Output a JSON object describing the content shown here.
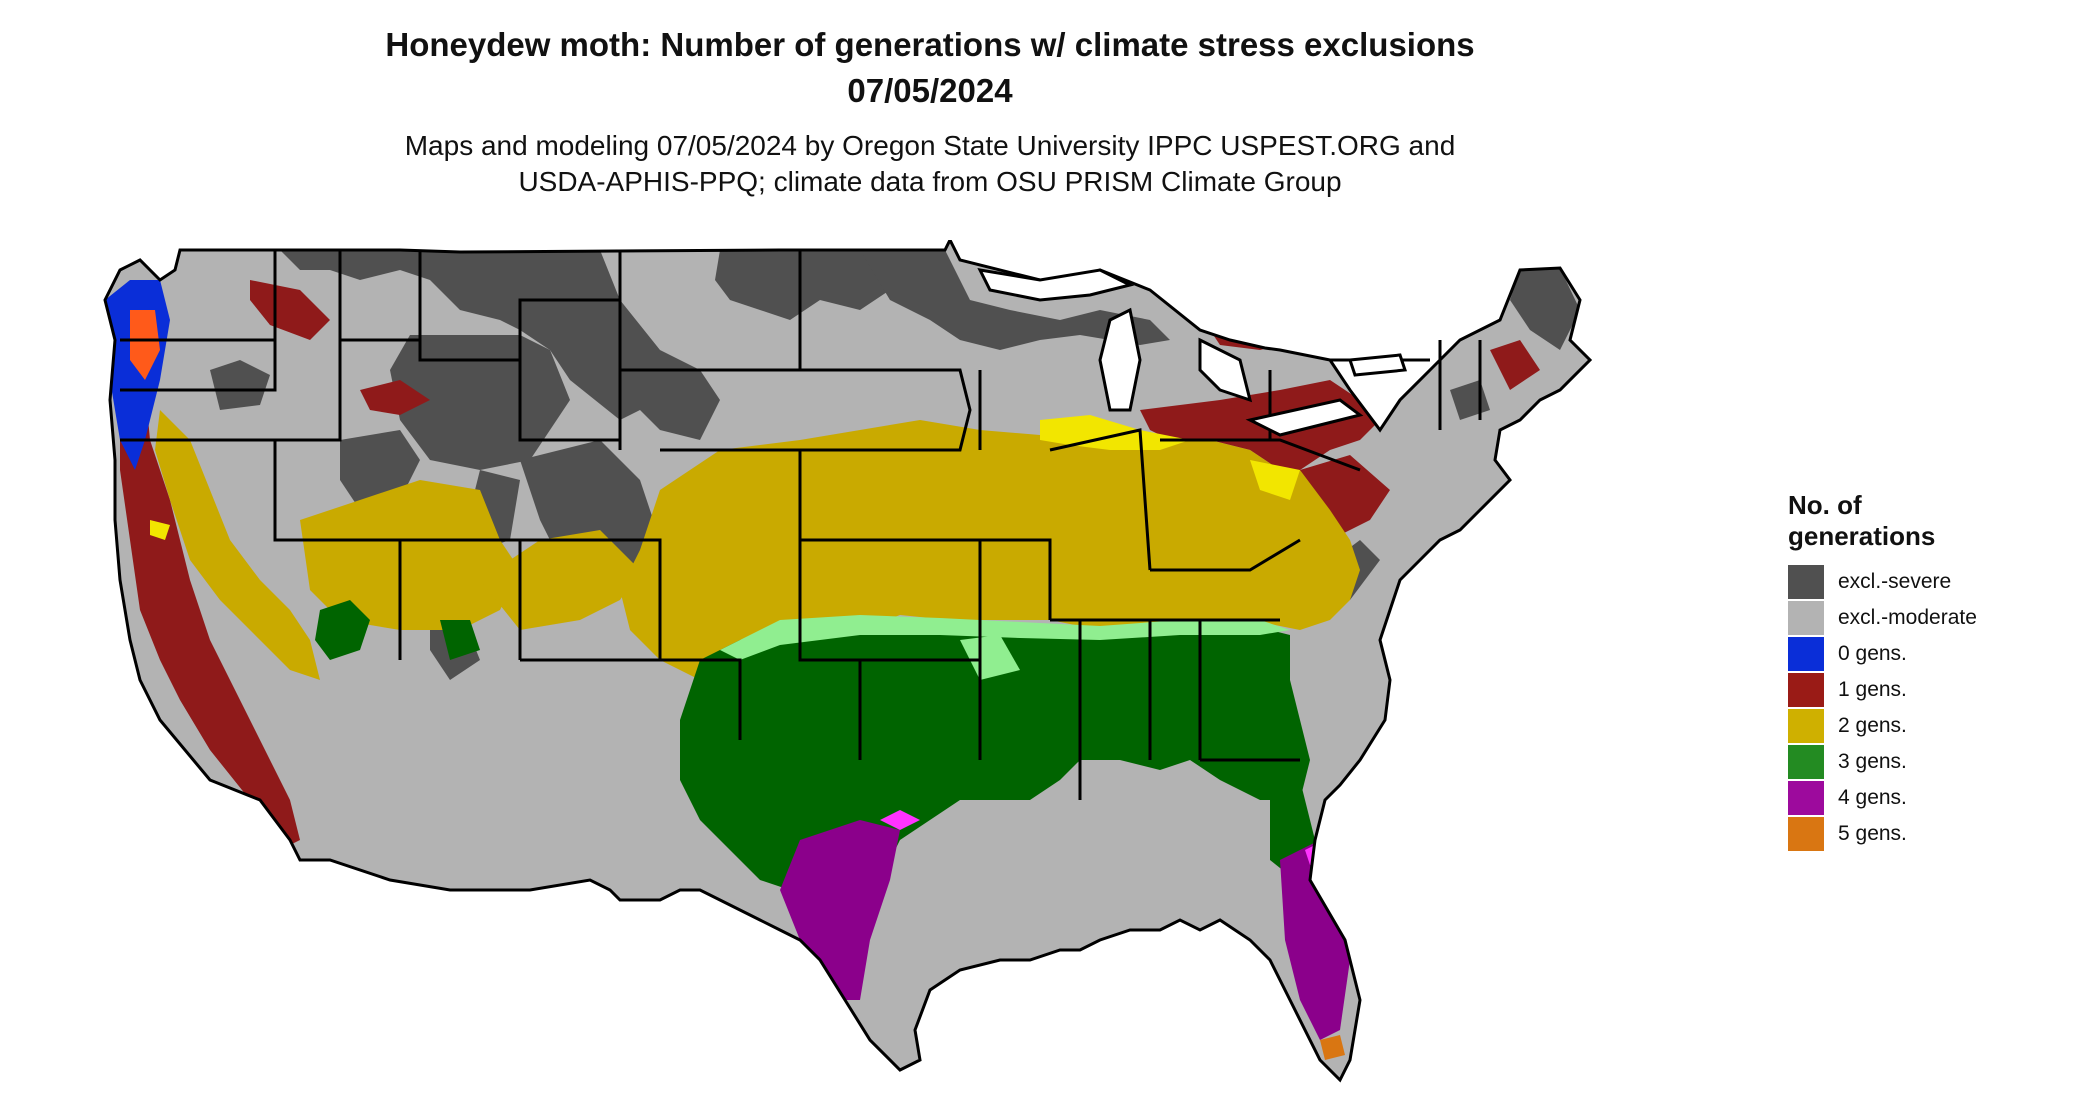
{
  "title_line1": "Honeydew moth: Number of generations w/ climate stress exclusions",
  "title_line2": "07/05/2024",
  "subtitle_line1": "Maps and modeling 07/05/2024 by Oregon State University IPPC USPEST.ORG and",
  "subtitle_line2": "USDA-APHIS-PPQ; climate data from OSU PRISM Climate Group",
  "legend": {
    "title_line1": "No. of",
    "title_line2": "generations",
    "items": [
      {
        "label": "excl.-severe",
        "color": "#505050"
      },
      {
        "label": "excl.-moderate",
        "color": "#b3b3b3"
      },
      {
        "label": "0 gens.",
        "color": "#0a2ed8"
      },
      {
        "label": "1 gens.",
        "color": "#9a1b16"
      },
      {
        "label": "2 gens.",
        "color": "#cfb000"
      },
      {
        "label": "3 gens.",
        "color": "#238b22"
      },
      {
        "label": "4 gens.",
        "color": "#9d0a9d"
      },
      {
        "label": "5 gens.",
        "color": "#d97612"
      }
    ]
  },
  "map_colors": {
    "excl_severe": "#505050",
    "excl_moderate": "#b3b3b3",
    "gen0": "#0a2ed8",
    "gen1": "#8f1a1a",
    "gen1_bright": "#ff5a1a",
    "gen2": "#c9aa00",
    "gen2_bright": "#f2e600",
    "gen3": "#006400",
    "gen3_light": "#90ee90",
    "gen4": "#8b008b",
    "gen4_bright": "#ff33ff",
    "gen5": "#d97612",
    "border": "#000000"
  }
}
